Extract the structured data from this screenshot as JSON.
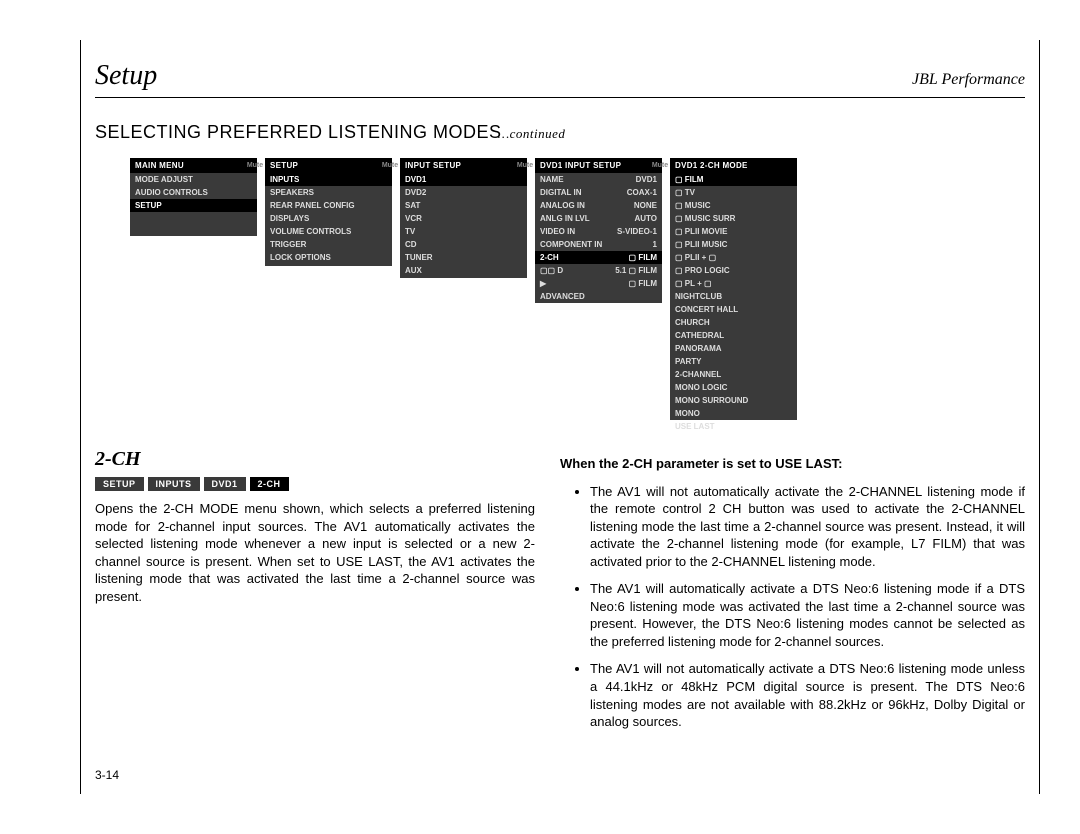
{
  "header": {
    "left": "Setup",
    "right": "JBL Performance"
  },
  "section_title": "SELECTING PREFERRED LISTENING MODES",
  "section_continued": "…continued",
  "menus": {
    "mute_label": "Mute",
    "m1": {
      "title": "MAIN MENU",
      "items": [
        "MODE ADJUST",
        "AUDIO CONTROLS",
        "SETUP"
      ],
      "highlight_idx": 2
    },
    "m2": {
      "title": "SETUP",
      "items": [
        "INPUTS",
        "SPEAKERS",
        "REAR PANEL CONFIG",
        "DISPLAYS",
        "VOLUME CONTROLS",
        "TRIGGER",
        "LOCK OPTIONS"
      ],
      "highlight_idx": 0
    },
    "m3": {
      "title": "INPUT SETUP",
      "items": [
        "DVD1",
        "DVD2",
        "SAT",
        "VCR",
        "TV",
        "CD",
        "TUNER",
        "AUX"
      ],
      "highlight_idx": 0
    },
    "m4": {
      "title": "DVD1 INPUT SETUP",
      "rows": [
        {
          "l": "NAME",
          "r": "DVD1"
        },
        {
          "l": "DIGITAL IN",
          "r": "COAX-1"
        },
        {
          "l": "ANALOG IN",
          "r": "NONE"
        },
        {
          "l": "ANLG IN LVL",
          "r": "AUTO"
        },
        {
          "l": "VIDEO IN",
          "r": "S-VIDEO-1"
        },
        {
          "l": "COMPONENT IN",
          "r": "1"
        },
        {
          "l": "2-CH",
          "r": "▢ FILM"
        },
        {
          "l": "▢▢ D",
          "r": "5.1 ▢ FILM"
        },
        {
          "l": "▶",
          "r": "▢ FILM"
        },
        {
          "l": "ADVANCED",
          "r": ""
        }
      ],
      "highlight_idx": 6
    },
    "m5": {
      "title": "DVD1 2-CH MODE",
      "items": [
        "▢ FILM",
        "▢ TV",
        "▢ MUSIC",
        "▢ MUSIC SURR",
        "▢ PLII MOVIE",
        "▢ PLII MUSIC",
        "▢ PLII + ▢",
        "▢ PRO LOGIC",
        "▢ PL + ▢",
        "NIGHTCLUB",
        "CONCERT HALL",
        "CHURCH",
        "CATHEDRAL",
        "PANORAMA",
        "PARTY",
        "2-CHANNEL",
        "MONO LOGIC",
        "MONO SURROUND",
        "MONO",
        "USE LAST"
      ],
      "highlight_idx": 0
    }
  },
  "subsection_title": "2-CH",
  "breadcrumb": [
    {
      "label": "SETUP",
      "dark": false
    },
    {
      "label": "INPUTS",
      "dark": false
    },
    {
      "label": "DVD1",
      "dark": false
    },
    {
      "label": "2-CH",
      "dark": true
    }
  ],
  "body_left": "Opens the 2-CH MODE menu shown, which selects a preferred listening mode for 2-channel input sources. The AV1 automatically activates the selected listening mode whenever a new input is selected or a new 2-channel source is present. When set to USE LAST, the AV1 activates the listening mode that was activated the last time a 2-channel source was present.",
  "body_right_title": "When the 2-CH parameter is set to USE LAST:",
  "body_right_bullets": [
    "The AV1 will not automatically activate the 2-CHANNEL listening mode if the remote control 2 CH button was used to activate the 2-CHANNEL listening mode the last time a 2-channel source was present. Instead, it will activate the 2-channel listening mode (for example, L7 FILM) that was activated prior to the 2-CHANNEL listening mode.",
    "The AV1 will automatically activate a DTS Neo:6 listening mode if a DTS Neo:6 listening mode was activated the last time a 2-channel source was present. However, the DTS Neo:6 listening modes cannot be selected as the preferred listening mode for 2-channel sources.",
    "The AV1 will not automatically activate a DTS Neo:6 listening mode unless a 44.1kHz or 48kHz PCM digital source is present. The DTS Neo:6 listening modes are not available with 88.2kHz or 96kHz, Dolby Digital or analog sources."
  ],
  "page_num": "3-14"
}
